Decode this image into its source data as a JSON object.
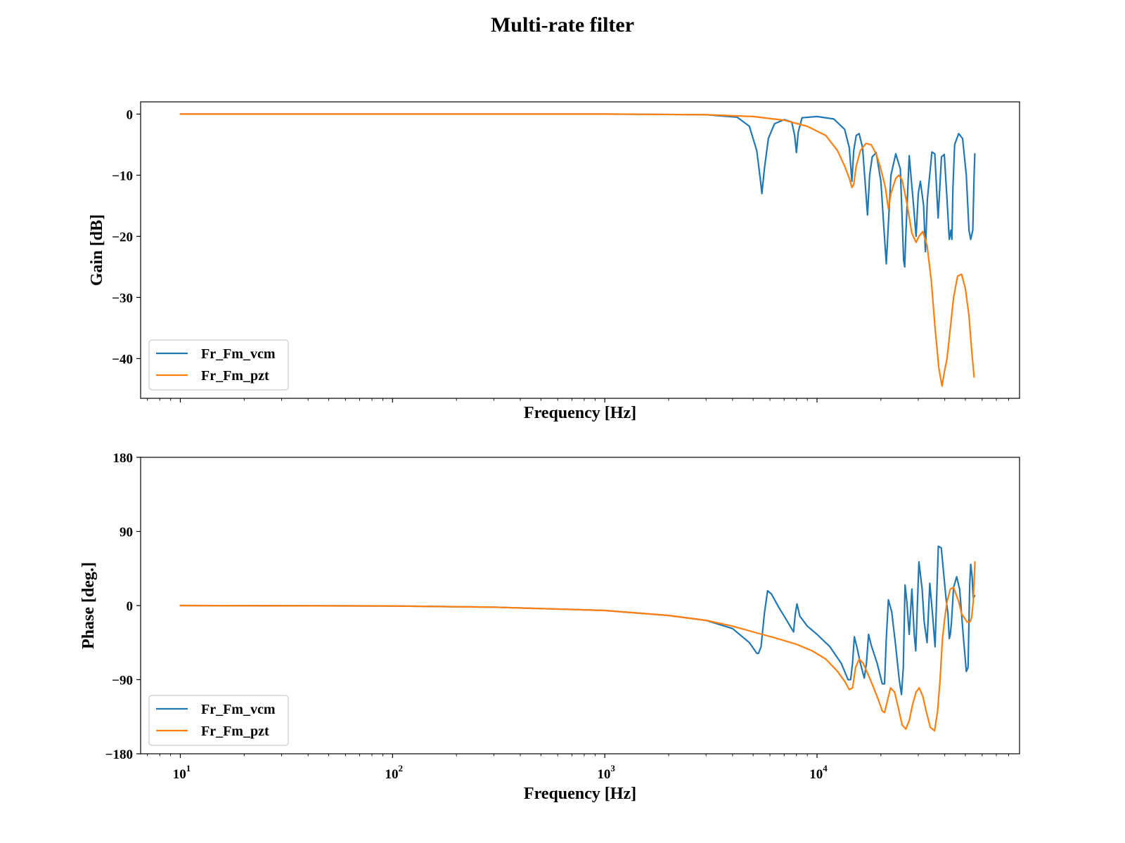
{
  "figure": {
    "title": "Multi-rate filter"
  },
  "chart_data": [
    {
      "type": "line",
      "name": "gain",
      "xscale": "log",
      "xlim": [
        6.5,
        90000
      ],
      "ylim": [
        -46.5,
        2
      ],
      "xlabel": "Frequency [Hz]",
      "ylabel": "Gain [dB]",
      "xticks": [
        10,
        100,
        1000,
        10000
      ],
      "xtick_labels_shown": false,
      "yticks": [
        0,
        -10,
        -20,
        -30,
        -40
      ],
      "ytick_labels": [
        "0",
        "−10",
        "−20",
        "−30",
        "−40"
      ],
      "grid": false,
      "legend": "lower-left",
      "series": [
        {
          "name": "Fr_Fm_vcm",
          "color": "#1f77b4",
          "x": [
            10,
            100,
            1000,
            3000,
            4200,
            4800,
            5200,
            5400,
            5500,
            5650,
            5900,
            6300,
            7000,
            7600,
            7850,
            8000,
            8150,
            8500,
            10000,
            12000,
            13500,
            14200,
            14600,
            14900,
            15300,
            15800,
            16400,
            17300,
            17700,
            18200,
            19000,
            20000,
            20700,
            21200,
            22300,
            23500,
            24700,
            25600,
            25900,
            26200,
            27200,
            28500,
            29300,
            30000,
            30700,
            31800,
            32400,
            33100,
            34800,
            35900,
            37200,
            38600,
            39800,
            41000,
            42000,
            42700,
            43200,
            43700,
            44500,
            46500,
            48500,
            50500,
            52000,
            53000,
            54200,
            55000,
            55400
          ],
          "y": [
            0,
            0,
            0,
            -0.1,
            -0.5,
            -2,
            -6,
            -10.5,
            -13,
            -9,
            -4,
            -1.6,
            -0.9,
            -1.3,
            -3.5,
            -6.3,
            -3,
            -0.6,
            -0.4,
            -0.8,
            -2.5,
            -5.5,
            -11,
            -6,
            -3.5,
            -3.2,
            -5.5,
            -16.5,
            -10,
            -7,
            -6.3,
            -11,
            -19,
            -24.5,
            -10,
            -6.5,
            -9,
            -24,
            -25,
            -20,
            -6.8,
            -15,
            -20,
            -13,
            -11,
            -15,
            -22.5,
            -14,
            -6.2,
            -6.5,
            -17,
            -7,
            -6.6,
            -14,
            -20.5,
            -19,
            -20.5,
            -12,
            -5,
            -3.2,
            -4,
            -10,
            -19,
            -20.5,
            -19,
            -10,
            -6.5
          ]
        },
        {
          "name": "Fr_Fm_pzt",
          "color": "#ff7f0e",
          "x": [
            10,
            100,
            1000,
            3000,
            5000,
            7000,
            9000,
            11000,
            12500,
            13500,
            14200,
            14600,
            14900,
            15300,
            16000,
            17000,
            18000,
            19000,
            20000,
            21000,
            21700,
            22300,
            23500,
            24300,
            25200,
            26500,
            28000,
            29300,
            30200,
            31500,
            33000,
            34500,
            36000,
            37500,
            38800,
            39900,
            41000,
            42500,
            44000,
            46000,
            48000,
            50000,
            52000,
            53500,
            55000
          ],
          "y": [
            0,
            0,
            0,
            -0.1,
            -0.4,
            -1,
            -2,
            -3.5,
            -6,
            -8.5,
            -10.5,
            -12,
            -11.5,
            -8.5,
            -6,
            -4.8,
            -5,
            -6.5,
            -9,
            -12,
            -15.5,
            -13,
            -10.5,
            -10,
            -10.8,
            -14.5,
            -19.5,
            -21,
            -20,
            -19.2,
            -21.5,
            -27,
            -35,
            -41.5,
            -44.5,
            -42,
            -40,
            -35,
            -30,
            -26.5,
            -26.2,
            -28.5,
            -33,
            -38.5,
            -43
          ]
        }
      ]
    },
    {
      "type": "line",
      "name": "phase",
      "xscale": "log",
      "xlim": [
        6.5,
        90000
      ],
      "ylim": [
        -180,
        180
      ],
      "xlabel": "Frequency [Hz]",
      "ylabel": "Phase [deg.]",
      "xticks": [
        10,
        100,
        1000,
        10000
      ],
      "xtick_labels": [
        [
          "10",
          "1"
        ],
        [
          "10",
          "2"
        ],
        [
          "10",
          "3"
        ],
        [
          "10",
          "4"
        ]
      ],
      "yticks": [
        180,
        90,
        0,
        -90,
        -180
      ],
      "ytick_labels": [
        "180",
        "90",
        "0",
        "−90",
        "−180"
      ],
      "grid": false,
      "legend": "lower-left",
      "series": [
        {
          "name": "Fr_Fm_vcm",
          "color": "#1f77b4",
          "x": [
            10,
            100,
            300,
            1000,
            2000,
            3000,
            4000,
            4800,
            5200,
            5300,
            5450,
            5650,
            5850,
            6100,
            6600,
            7200,
            7750,
            7900,
            8050,
            8300,
            9000,
            10000,
            11500,
            13000,
            14000,
            14400,
            14700,
            15000,
            15400,
            16000,
            16700,
            17100,
            17500,
            18000,
            19200,
            20300,
            20800,
            21200,
            21700,
            22500,
            23500,
            24400,
            25000,
            25500,
            26000,
            26500,
            27200,
            28000,
            28700,
            29200,
            30200,
            31300,
            32000,
            33000,
            34000,
            35000,
            36000,
            37300,
            38500,
            39500,
            40500,
            41400,
            42000,
            42500,
            43000,
            44000,
            45500,
            47000,
            49000,
            50500,
            51500,
            52400,
            53000,
            53800,
            54400,
            54800,
            55300
          ],
          "y": [
            0,
            -0.5,
            -2,
            -6,
            -12,
            -18,
            -28,
            -45,
            -58,
            -58,
            -50,
            -10,
            18,
            14,
            -2,
            -18,
            -32,
            -10,
            2,
            -13,
            -25,
            -35,
            -50,
            -70,
            -90,
            -90,
            -70,
            -38,
            -50,
            -70,
            -88,
            -70,
            -35,
            -48,
            -70,
            -95,
            -95,
            -40,
            7,
            -8,
            -50,
            -90,
            -108,
            -75,
            25,
            5,
            -35,
            20,
            -35,
            -55,
            53,
            20,
            -20,
            -45,
            27,
            -10,
            -50,
            72,
            70,
            40,
            10,
            -10,
            -40,
            -35,
            -20,
            22,
            35,
            20,
            -40,
            -80,
            -75,
            25,
            50,
            35,
            10,
            10,
            12
          ]
        },
        {
          "name": "Fr_Fm_pzt",
          "color": "#ff7f0e",
          "x": [
            10,
            100,
            300,
            1000,
            2000,
            3000,
            4000,
            5000,
            6500,
            8000,
            9500,
            11000,
            12500,
            13500,
            14200,
            14700,
            15200,
            15800,
            16500,
            17500,
            18500,
            19500,
            20300,
            20800,
            21500,
            22200,
            23200,
            24200,
            25200,
            26200,
            27200,
            28200,
            29300,
            30300,
            31500,
            32800,
            34200,
            35800,
            37000,
            38000,
            39000,
            40000,
            41000,
            42500,
            44000,
            45000,
            46500,
            48000,
            49500,
            51000,
            52500,
            53500,
            54500,
            55500
          ],
          "y": [
            0,
            -0.5,
            -2,
            -6,
            -12,
            -18,
            -25,
            -32,
            -40,
            -47,
            -55,
            -65,
            -80,
            -92,
            -102,
            -100,
            -75,
            -65,
            -70,
            -85,
            -100,
            -115,
            -128,
            -130,
            -115,
            -100,
            -105,
            -125,
            -145,
            -150,
            -140,
            -120,
            -105,
            -100,
            -110,
            -130,
            -148,
            -152,
            -128,
            -90,
            -40,
            -15,
            5,
            20,
            22,
            15,
            5,
            -10,
            -15,
            -20,
            -20,
            -15,
            5,
            53
          ]
        }
      ]
    }
  ]
}
